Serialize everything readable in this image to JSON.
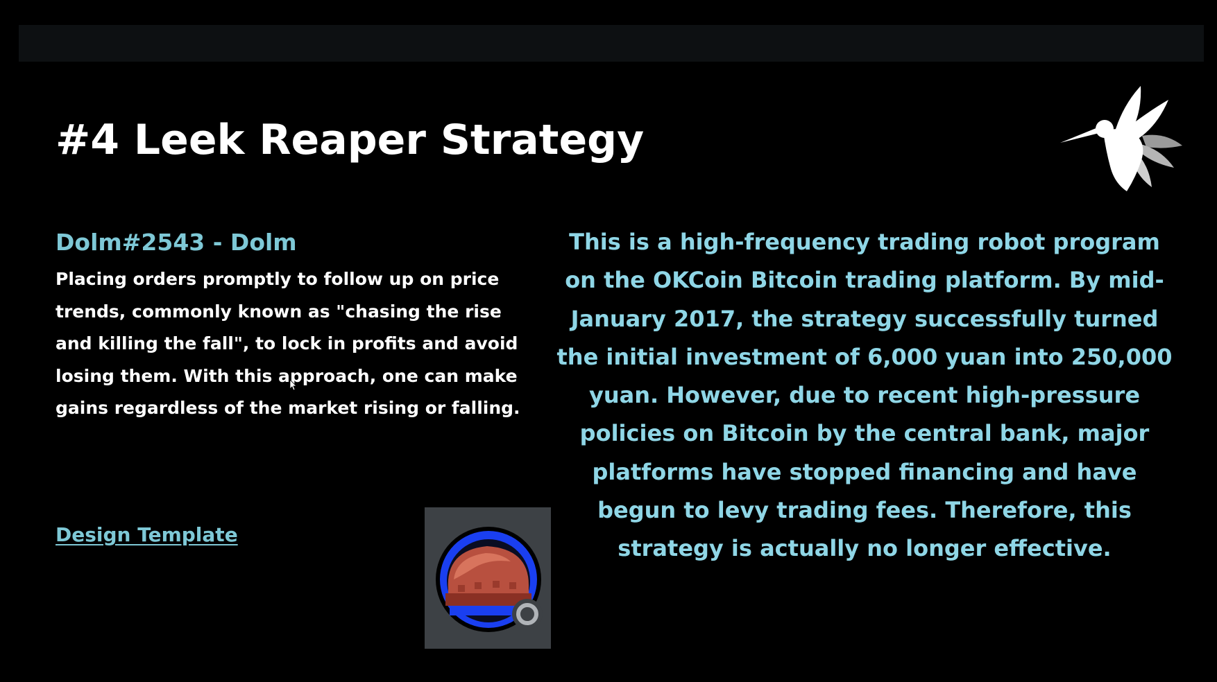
{
  "slide": {
    "title": "#4 Leek Reaper Strategy",
    "author": "Dolm#2543 - Dolm",
    "left_text": "Placing orders promptly to follow up on price trends, commonly known as \"chasing the rise and killing the fall\", to lock in profits and avoid losing them. With this approach, one can make gains regardless of the market rising or falling.",
    "design_link": "Design Template",
    "right_text": "This is a high-frequency trading robot program on the OKCoin Bitcoin trading platform. By mid-January 2017, the strategy successfully turned the initial investment of 6,000 yuan into 250,000 yuan. However, due to recent high-pressure policies on Bitcoin by the central bank, major platforms have stopped financing and have begun to levy trading fees. Therefore, this strategy is actually no longer effective."
  },
  "icons": {
    "logo": "hummingbird-logo-icon",
    "avatar": "helmet-avatar-icon",
    "avatar_badge": "status-ring-icon"
  },
  "colors": {
    "background": "#000000",
    "top_bar": "#0d1012",
    "title": "#ffffff",
    "accent": "#7ec8d6",
    "right_text": "#8fd6e6",
    "avatar_ring": "#1a3ff0",
    "helmet": "#b8503f"
  }
}
